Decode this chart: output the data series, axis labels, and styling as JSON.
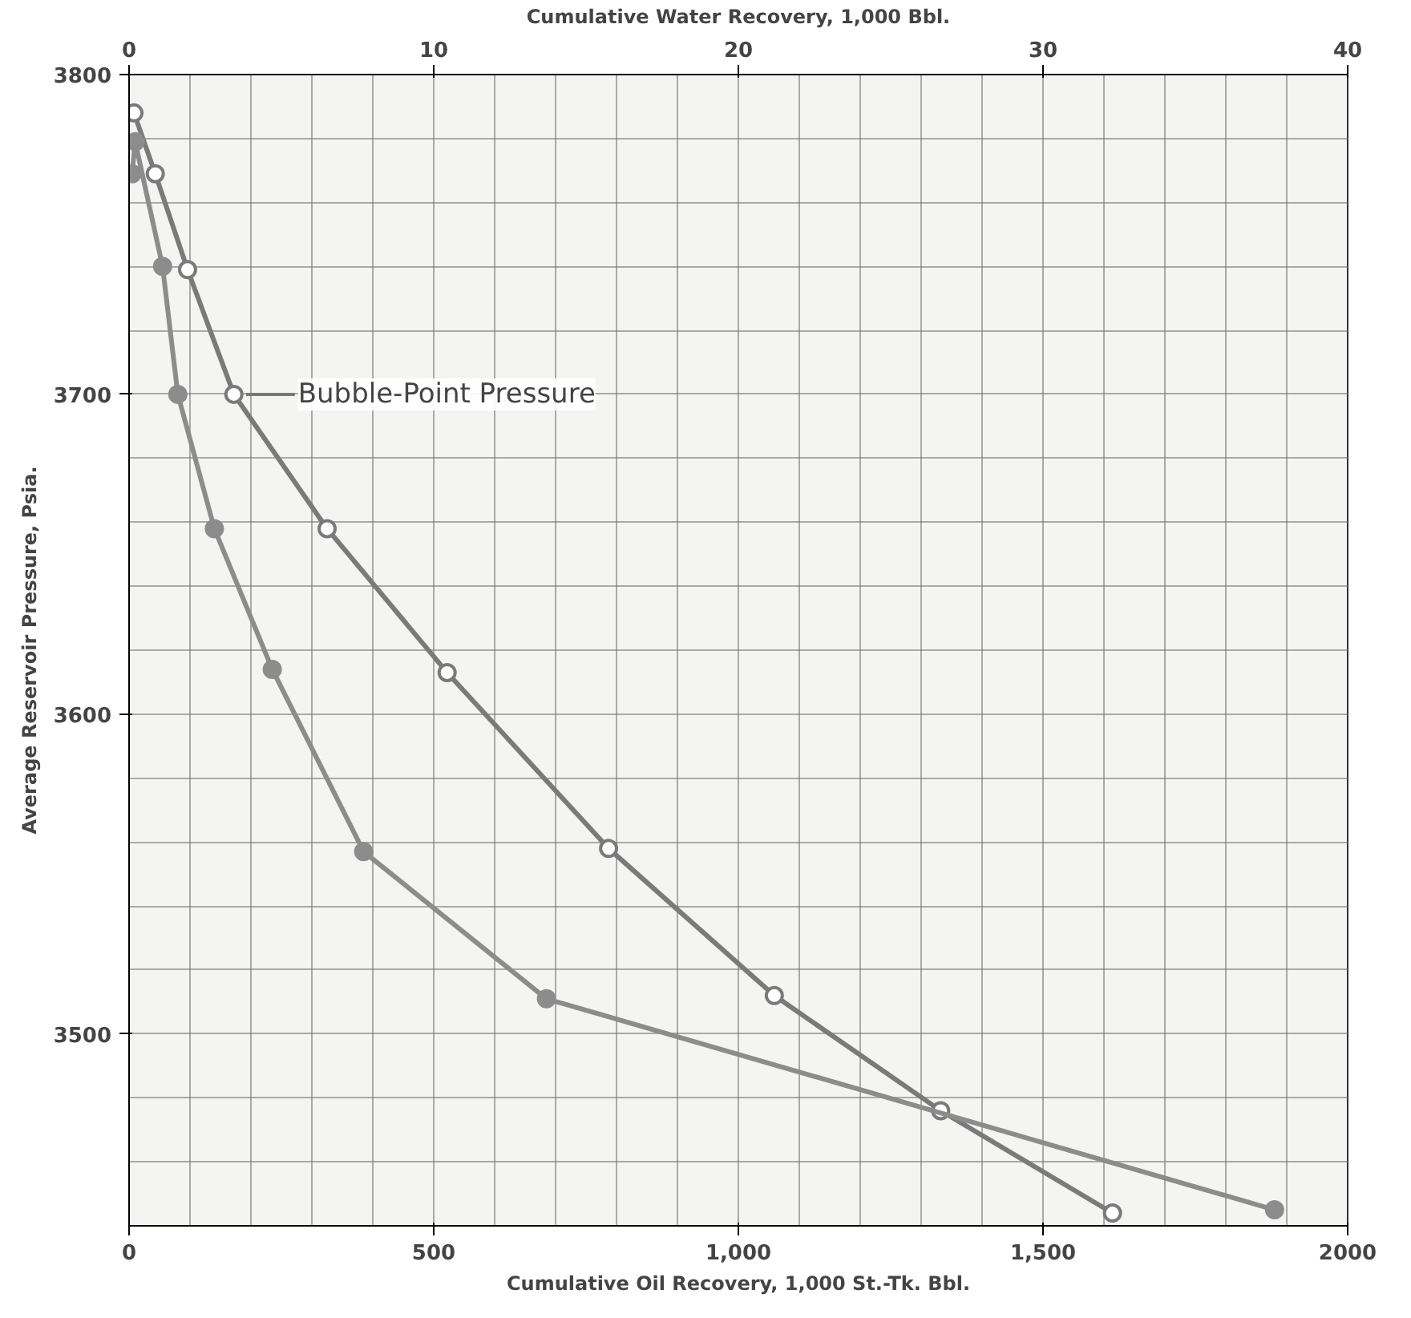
{
  "chart_data": {
    "type": "line",
    "xlabel": "Cumulative Oil Recovery, 1,000 St.-Tk. Bbl.",
    "x2label": "Cumulative Water Recovery, 1,000 Bbl.",
    "ylabel": "Average Reservoir Pressure, Psia.",
    "xlim": [
      0,
      2000
    ],
    "xticks": [
      0,
      500,
      {
        "value": 1000,
        "label": "1,000"
      },
      {
        "value": 1500,
        "label": "1,500"
      },
      2000
    ],
    "x2lim": [
      0,
      40
    ],
    "x2ticks": [
      0,
      10,
      20,
      30,
      40
    ],
    "ylim": [
      3440,
      3800
    ],
    "yticks": [
      3500,
      3600,
      3700,
      3800
    ],
    "grid": true,
    "marker": "circle",
    "line_style": "solid",
    "series": [
      {
        "color": "#7a7a7a",
        "x": [
          8,
          43,
          96,
          172,
          325,
          522,
          787,
          1059,
          1332,
          1614
        ],
        "values": [
          3788,
          3769,
          3739,
          3700,
          3658,
          3613,
          3558,
          3512,
          3476,
          3444
        ]
      },
      {
        "color": "#8c8c8c",
        "axis": "x2",
        "x": [
          0.1,
          0.2,
          1.1,
          1.6,
          2.8,
          4.7,
          7.7,
          13.7,
          37.6
        ],
        "values": [
          3769,
          3779,
          3740,
          3700,
          3658,
          3614,
          3557,
          3511,
          3445
        ]
      }
    ],
    "annotations": [
      {
        "text": "Bubble-Point Pressure",
        "x": 172,
        "y": 3700
      }
    ]
  }
}
